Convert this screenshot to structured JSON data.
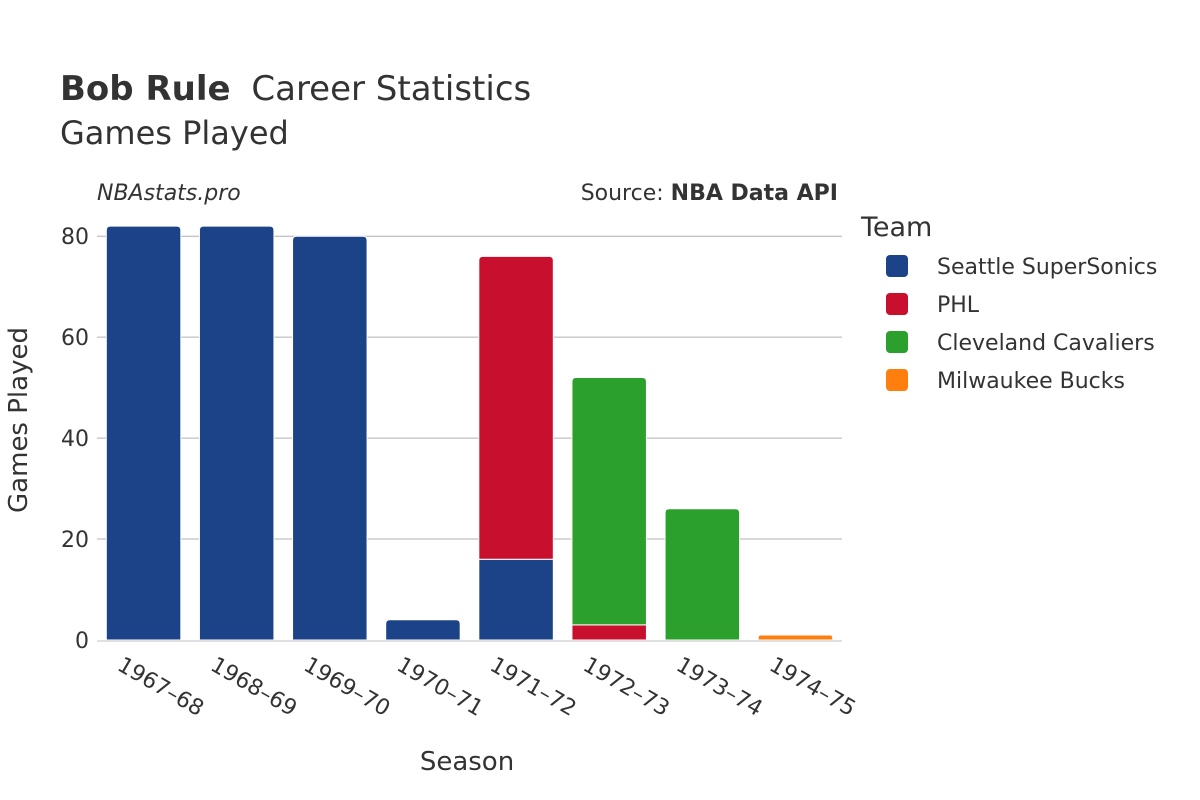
{
  "header": {
    "title_bold": "Bob Rule",
    "title_rest": "Career Statistics",
    "subtitle": "Games Played"
  },
  "watermark": "NBAstats.pro",
  "source": {
    "prefix": "Source: ",
    "name": "NBA Data API"
  },
  "legend": {
    "title": "Team"
  },
  "chart_data": {
    "type": "bar",
    "stacked": true,
    "title": "Bob Rule Career Statistics",
    "subtitle": "Games Played",
    "xlabel": "Season",
    "ylabel": "Games Played",
    "ylim": [
      0,
      84
    ],
    "yticks": [
      0,
      20,
      40,
      60,
      80
    ],
    "grid": true,
    "legend_position": "right",
    "categories": [
      "1967–68",
      "1968–69",
      "1969–70",
      "1970–71",
      "1971–72",
      "1972–73",
      "1973–74",
      "1974–75"
    ],
    "series": [
      {
        "name": "Seattle SuperSonics",
        "color": "#1c4387",
        "values": [
          82,
          82,
          80,
          4,
          16,
          0,
          0,
          0
        ]
      },
      {
        "name": "PHL",
        "color": "#c8102e",
        "values": [
          0,
          0,
          0,
          0,
          60,
          3,
          0,
          0
        ]
      },
      {
        "name": "Cleveland Cavaliers",
        "color": "#2ca02c",
        "values": [
          0,
          0,
          0,
          0,
          0,
          49,
          26,
          0
        ]
      },
      {
        "name": "Milwaukee Bucks",
        "color": "#ff7f0e",
        "values": [
          0,
          0,
          0,
          0,
          0,
          0,
          0,
          1
        ]
      }
    ]
  }
}
